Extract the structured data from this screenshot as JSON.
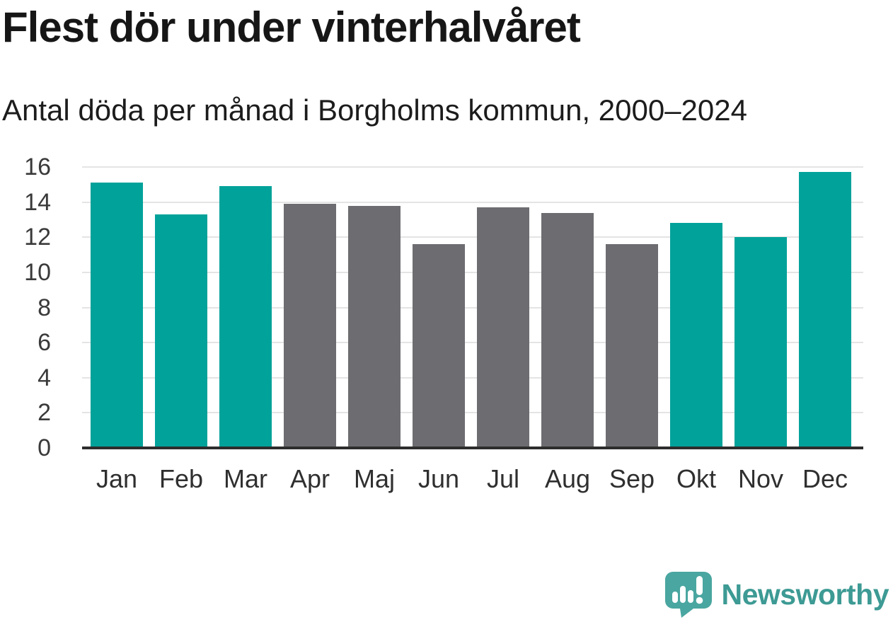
{
  "chart_data": {
    "type": "bar",
    "title": "Flest dör under vinterhalvåret",
    "subtitle": "Antal döda per månad i Borgholms kommun, 2000–2024",
    "categories": [
      "Jan",
      "Feb",
      "Mar",
      "Apr",
      "Maj",
      "Jun",
      "Jul",
      "Aug",
      "Sep",
      "Okt",
      "Nov",
      "Dec"
    ],
    "values": [
      15.1,
      13.3,
      14.9,
      13.9,
      13.8,
      11.6,
      13.7,
      13.4,
      11.6,
      12.8,
      12.0,
      15.7
    ],
    "bar_colors": [
      "teal",
      "teal",
      "teal",
      "gray",
      "gray",
      "gray",
      "gray",
      "gray",
      "gray",
      "teal",
      "teal",
      "teal"
    ],
    "colors": {
      "teal": "#00A29A",
      "gray": "#6D6D71"
    },
    "ylim": [
      0,
      16
    ],
    "yticks": [
      0,
      2,
      4,
      6,
      8,
      10,
      12,
      14,
      16
    ],
    "xlabel": "",
    "ylabel": "",
    "grid": true,
    "legend": "none",
    "gridline_color": "#E4E4E4",
    "axis_color": "#2D2D2D"
  },
  "branding": {
    "logo_text": "Newsworthy",
    "logo_text_color": "#3D9A94",
    "logo_bubble_color": "#4AA6A0"
  }
}
